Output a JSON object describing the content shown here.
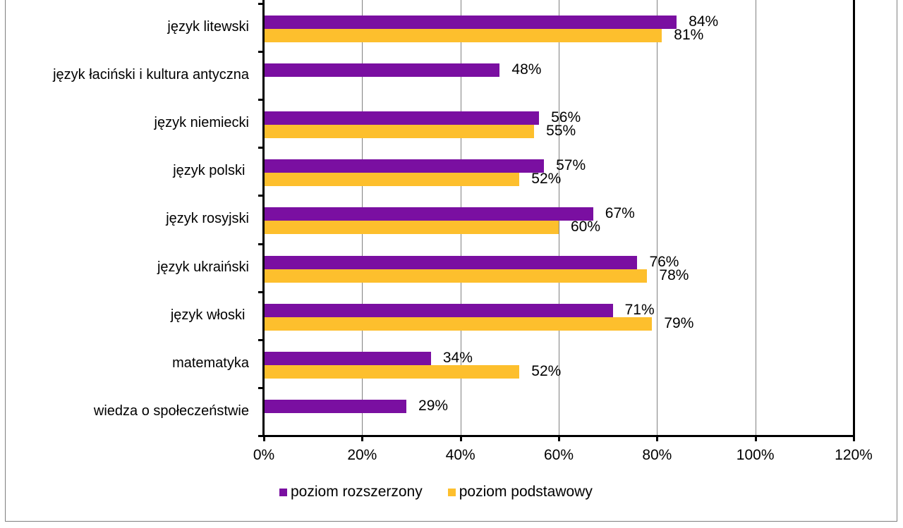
{
  "chart_data": {
    "type": "bar",
    "orientation": "horizontal",
    "title": "",
    "xlabel": "",
    "ylabel": "",
    "xlim": [
      0,
      120
    ],
    "x_ticks": [
      "0%",
      "20%",
      "40%",
      "60%",
      "80%",
      "100%",
      "120%"
    ],
    "grid": true,
    "legend_position": "bottom",
    "categories": [
      "język litewski",
      "język łaciński i kultura antyczna",
      "język niemiecki",
      "język polski ",
      "język rosyjski",
      "język ukraiński",
      "język włoski ",
      "matematyka",
      "wiedza o społeczeństwie"
    ],
    "series": [
      {
        "name": "poziom rozszerzony",
        "color": "#7a0fa1",
        "values": [
          84,
          48,
          56,
          57,
          67,
          76,
          71,
          34,
          29
        ],
        "labels": [
          "84%",
          "48%",
          "56%",
          "57%",
          "67%",
          "76%",
          "71%",
          "34%",
          "29%"
        ]
      },
      {
        "name": "poziom podstawowy",
        "color": "#fdbf2d",
        "values": [
          81,
          null,
          55,
          52,
          60,
          78,
          79,
          52,
          null
        ],
        "labels": [
          "81%",
          "",
          "55%",
          "52%",
          "60%",
          "78%",
          "79%",
          "52%",
          ""
        ]
      }
    ]
  },
  "legend": {
    "items": [
      {
        "label": "poziom rozszerzony",
        "color": "#7a0fa1"
      },
      {
        "label": "poziom podstawowy",
        "color": "#fdbf2d"
      }
    ]
  }
}
